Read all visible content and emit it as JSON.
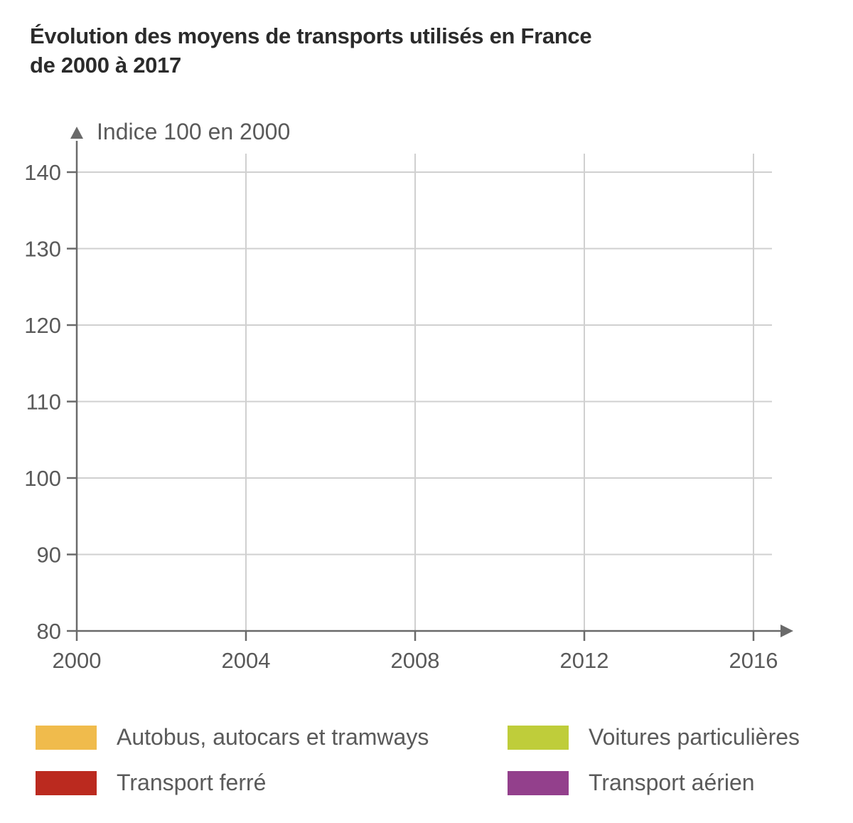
{
  "title_lines": [
    "Évolution des moyens de transports utilisés en France",
    "de 2000 à 2017"
  ],
  "chart_data": {
    "type": "line",
    "title": "Évolution des moyens de transports utilisés en France de 2000 à 2017",
    "ylabel": "Indice 100 en 2000",
    "xlabel": "",
    "xlim": [
      2000,
      2017
    ],
    "ylim": [
      80,
      140
    ],
    "x_ticks": [
      2000,
      2004,
      2008,
      2012,
      2016
    ],
    "y_ticks": [
      80,
      90,
      100,
      110,
      120,
      130,
      140
    ],
    "grid": true,
    "legend_position": "bottom",
    "series": [
      {
        "name": "Autobus, autocars et tramways",
        "color": "#f0bb4c",
        "values": []
      },
      {
        "name": "Voitures particulières",
        "color": "#bfcd3a",
        "values": []
      },
      {
        "name": "Transport ferré",
        "color": "#bb2a1f",
        "values": []
      },
      {
        "name": "Transport aérien",
        "color": "#93408c",
        "values": []
      }
    ]
  }
}
